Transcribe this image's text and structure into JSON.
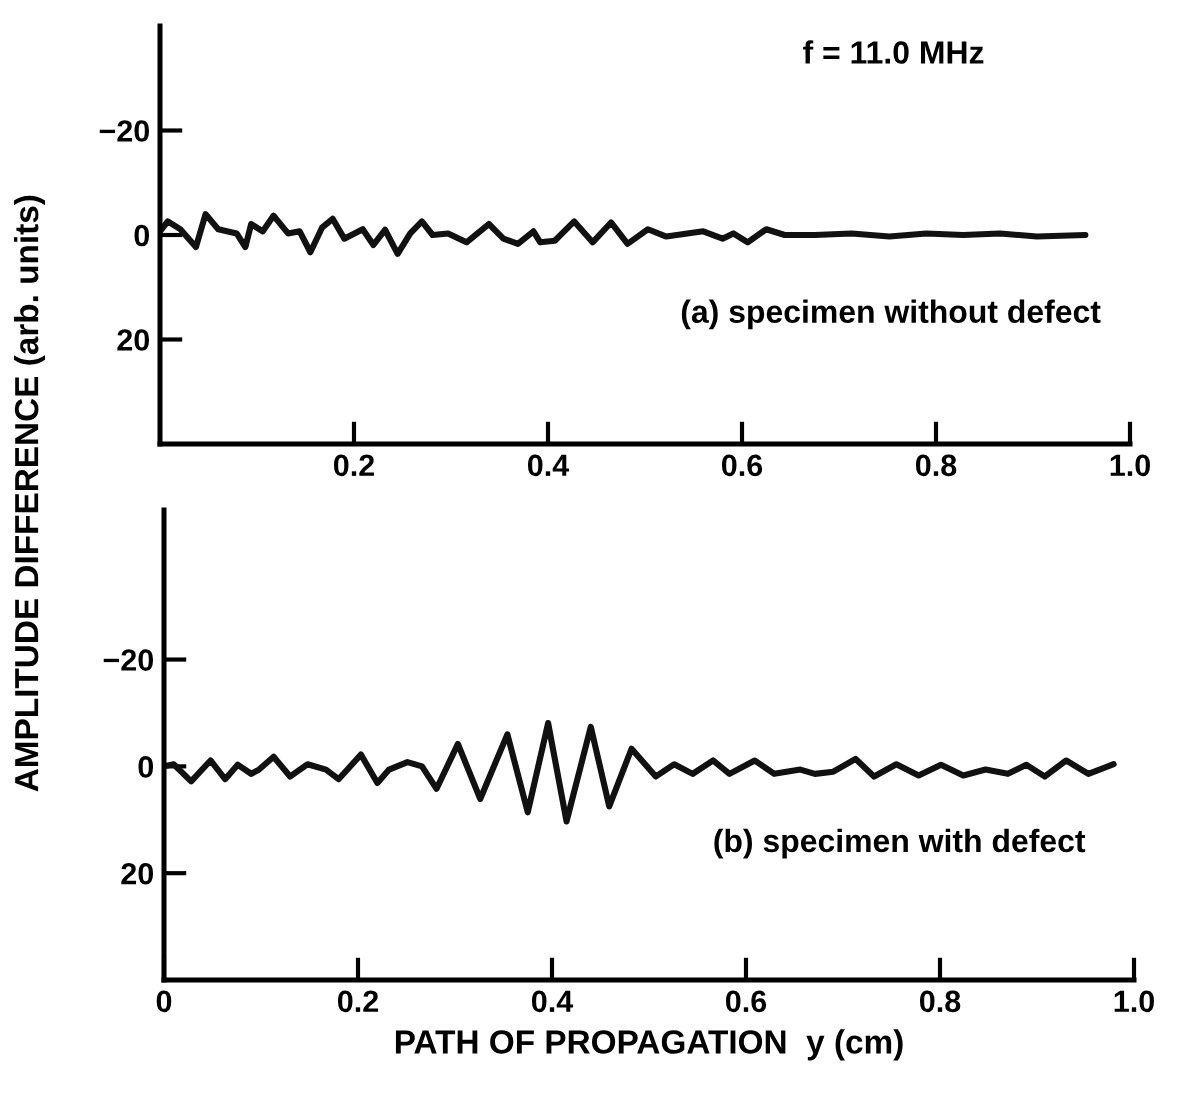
{
  "chart_data": [
    {
      "type": "line",
      "ylabel": "AMPLITUDE DIFFERENCE (arb. units)",
      "annotations": [
        "f = 11.0 MHz",
        "(a) specimen without defect"
      ],
      "series": [
        {
          "color": "#111111",
          "x": [
            0,
            0.008,
            0.021,
            0.037,
            0.047,
            0.06,
            0.079,
            0.088,
            0.094,
            0.106,
            0.117,
            0.132,
            0.144,
            0.155,
            0.167,
            0.178,
            0.19,
            0.209,
            0.22,
            0.232,
            0.245,
            0.258,
            0.27,
            0.281,
            0.297,
            0.316,
            0.339,
            0.354,
            0.369,
            0.385,
            0.392,
            0.407,
            0.427,
            0.446,
            0.465,
            0.482,
            0.503,
            0.522,
            0.56,
            0.58,
            0.591,
            0.606,
            0.625,
            0.644,
            0.675,
            0.713,
            0.752,
            0.79,
            0.828,
            0.866,
            0.904,
            0.954
          ],
          "values": [
            -0.7,
            -2.6,
            -1.1,
            2.3,
            -4.0,
            -1.1,
            -0.3,
            2.3,
            -2.1,
            -0.7,
            -3.7,
            -0.3,
            -0.7,
            3.3,
            -1.4,
            -3.1,
            0.7,
            -1.1,
            1.9,
            -1.0,
            3.6,
            -0.3,
            -2.6,
            0,
            -0.3,
            1.4,
            -2.1,
            0.7,
            1.7,
            -0.7,
            1.4,
            1.1,
            -2.6,
            1.4,
            -2.4,
            1.7,
            -1.1,
            0.3,
            -0.7,
            0.7,
            -0.3,
            1.4,
            -1.1,
            0,
            0,
            -0.3,
            0.3,
            -0.3,
            0,
            -0.3,
            0.3,
            0
          ]
        }
      ],
      "xlim": [
        0,
        1.0
      ],
      "xticks": [
        0.2,
        0.4,
        0.6,
        0.8,
        {
          "value": 1.0,
          "label": "1.0"
        }
      ],
      "ylim": [
        40,
        -40
      ],
      "yticks": [
        -20,
        0,
        20
      ],
      "grid": false,
      "marker": "none",
      "line_style": "solid"
    },
    {
      "type": "line",
      "xlabel": "PATH OF PROPAGATION  y (cm)",
      "annotations": [
        "(b) specimen with defect"
      ],
      "series": [
        {
          "color": "#111111",
          "x": [
            0,
            0.01,
            0.028,
            0.048,
            0.063,
            0.076,
            0.09,
            0.098,
            0.113,
            0.13,
            0.148,
            0.167,
            0.18,
            0.203,
            0.22,
            0.232,
            0.251,
            0.266,
            0.281,
            0.303,
            0.326,
            0.354,
            0.375,
            0.396,
            0.415,
            0.44,
            0.459,
            0.482,
            0.507,
            0.526,
            0.545,
            0.566,
            0.583,
            0.609,
            0.629,
            0.656,
            0.671,
            0.69,
            0.713,
            0.732,
            0.755,
            0.778,
            0.801,
            0.824,
            0.847,
            0.87,
            0.889,
            0.908,
            0.93,
            0.953,
            0.979
          ],
          "values": [
            0,
            -0.4,
            2.8,
            -1.1,
            2.4,
            -0.3,
            1.4,
            0.6,
            -1.8,
            1.9,
            -0.4,
            0.6,
            2.4,
            -2.2,
            3.1,
            0.6,
            -0.8,
            0,
            4.2,
            -4.2,
            6.1,
            -6.0,
            8.6,
            -8.1,
            10.3,
            -7.4,
            7.5,
            -3.3,
            1.9,
            -0.4,
            1.4,
            -1.1,
            1.4,
            -1.1,
            1.4,
            0.6,
            1.4,
            1.0,
            -1.4,
            1.9,
            -0.4,
            1.7,
            -0.3,
            1.7,
            0.6,
            1.4,
            -0.3,
            1.9,
            -1.1,
            1.4,
            -0.4
          ]
        }
      ],
      "xlim": [
        0,
        1.0
      ],
      "xticks": [
        0,
        0.2,
        0.4,
        0.6,
        0.8,
        {
          "value": 1.0,
          "label": "1.0"
        }
      ],
      "ylim": [
        40,
        -48
      ],
      "yticks": [
        -20,
        0,
        20
      ],
      "grid": false,
      "marker": "none",
      "line_style": "solid"
    }
  ]
}
